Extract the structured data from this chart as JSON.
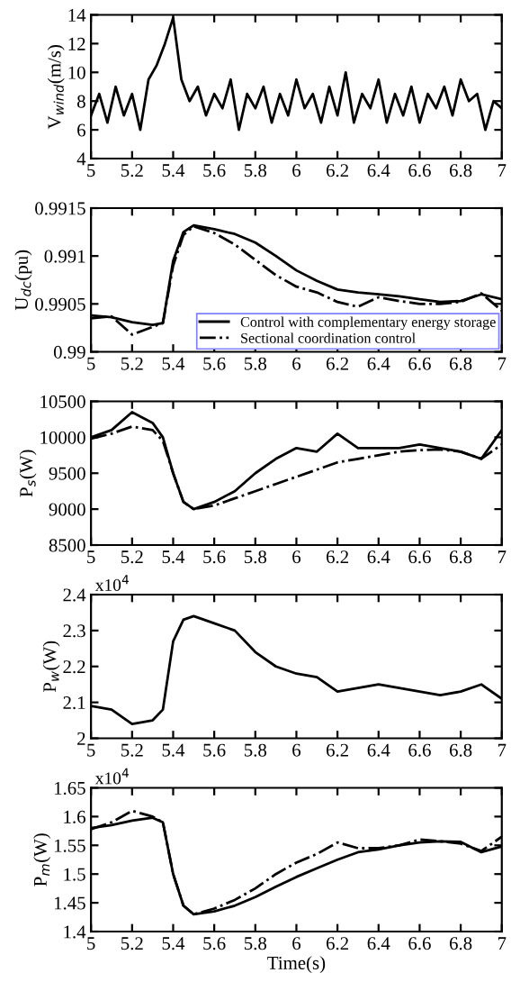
{
  "chart_data": [
    {
      "type": "line",
      "ylabel": "V$_{wind}$(m/s)",
      "xlim": [
        5,
        7
      ],
      "ylim": [
        4,
        14
      ],
      "xticks": [
        5,
        5.2,
        5.4,
        5.6,
        5.8,
        6,
        6.2,
        6.4,
        6.6,
        6.8,
        7
      ],
      "yticks": [
        4,
        6,
        8,
        10,
        12,
        14
      ],
      "x": [
        5.0,
        5.04,
        5.08,
        5.12,
        5.16,
        5.2,
        5.24,
        5.28,
        5.32,
        5.36,
        5.4,
        5.44,
        5.48,
        5.52,
        5.56,
        5.6,
        5.64,
        5.68,
        5.72,
        5.76,
        5.8,
        5.84,
        5.88,
        5.92,
        5.96,
        6.0,
        6.04,
        6.08,
        6.12,
        6.16,
        6.2,
        6.24,
        6.28,
        6.32,
        6.36,
        6.4,
        6.44,
        6.48,
        6.52,
        6.56,
        6.6,
        6.64,
        6.68,
        6.72,
        6.76,
        6.8,
        6.84,
        6.88,
        6.92,
        6.96,
        7.0
      ],
      "series": [
        {
          "color": "#000000",
          "line_style": "solid",
          "values": [
            7.0,
            8.5,
            6.5,
            9.0,
            7.0,
            8.5,
            6.0,
            9.5,
            10.5,
            12.0,
            13.8,
            9.5,
            8.0,
            9.0,
            7.0,
            8.5,
            7.5,
            9.5,
            6.0,
            8.5,
            7.5,
            9.0,
            6.5,
            8.5,
            7.0,
            9.5,
            7.5,
            8.5,
            6.5,
            9.0,
            7.0,
            10.0,
            6.5,
            8.5,
            7.5,
            9.5,
            6.5,
            8.5,
            7.0,
            9.0,
            6.5,
            8.5,
            7.5,
            9.0,
            7.0,
            9.5,
            8.0,
            8.5,
            6.0,
            8.0,
            7.5
          ]
        }
      ]
    },
    {
      "type": "line",
      "ylabel": "U$_{dc}$(pu)",
      "xlim": [
        5,
        7
      ],
      "ylim": [
        0.99,
        0.9915
      ],
      "xticks": [
        5,
        5.2,
        5.4,
        5.6,
        5.8,
        6,
        6.2,
        6.4,
        6.6,
        6.8,
        7
      ],
      "yticks": [
        0.99,
        0.9905,
        0.991,
        0.9915
      ],
      "legend": "bottom right",
      "x": [
        5.0,
        5.1,
        5.2,
        5.3,
        5.35,
        5.4,
        5.45,
        5.5,
        5.6,
        5.7,
        5.8,
        5.9,
        6.0,
        6.1,
        6.2,
        6.3,
        6.4,
        6.5,
        6.6,
        6.7,
        6.8,
        6.9,
        7.0
      ],
      "series": [
        {
          "name": "Control with complementary energy storage",
          "color": "#000000",
          "line_style": "solid",
          "values": [
            0.99038,
            0.99036,
            0.99031,
            0.99028,
            0.9903,
            0.99095,
            0.99125,
            0.99132,
            0.99128,
            0.99123,
            0.99114,
            0.991,
            0.99085,
            0.99074,
            0.99065,
            0.99062,
            0.9906,
            0.99058,
            0.99055,
            0.99052,
            0.99053,
            0.9906,
            0.99055
          ]
        },
        {
          "name": "Sectional coordination control",
          "color": "#000000",
          "line_style": "dashdot",
          "values": [
            0.99035,
            0.99037,
            0.99018,
            0.99026,
            0.9903,
            0.9909,
            0.99122,
            0.99131,
            0.99124,
            0.99112,
            0.99096,
            0.9908,
            0.99068,
            0.99062,
            0.99052,
            0.99047,
            0.99057,
            0.99053,
            0.9905,
            0.9905,
            0.99052,
            0.99061,
            0.99043
          ]
        }
      ]
    },
    {
      "type": "line",
      "ylabel": "P$_{s}$(W)",
      "xlim": [
        5,
        7
      ],
      "ylim": [
        8500,
        10500
      ],
      "xticks": [
        5,
        5.2,
        5.4,
        5.6,
        5.8,
        6,
        6.2,
        6.4,
        6.6,
        6.8,
        7
      ],
      "yticks": [
        8500,
        9000,
        9500,
        10000,
        10500
      ],
      "x": [
        5.0,
        5.1,
        5.2,
        5.3,
        5.35,
        5.4,
        5.45,
        5.5,
        5.6,
        5.7,
        5.8,
        5.9,
        6.0,
        6.1,
        6.2,
        6.3,
        6.4,
        6.5,
        6.6,
        6.7,
        6.8,
        6.9,
        7.0
      ],
      "series": [
        {
          "color": "#000000",
          "line_style": "solid",
          "values": [
            10000,
            10100,
            10350,
            10200,
            10000,
            9500,
            9100,
            9000,
            9100,
            9250,
            9500,
            9700,
            9850,
            9800,
            10050,
            9850,
            9850,
            9850,
            9900,
            9850,
            9800,
            9700,
            10100
          ]
        },
        {
          "color": "#000000",
          "line_style": "dashdot",
          "values": [
            9980,
            10050,
            10150,
            10100,
            9950,
            9500,
            9100,
            9000,
            9050,
            9150,
            9250,
            9350,
            9450,
            9550,
            9650,
            9700,
            9750,
            9800,
            9820,
            9830,
            9800,
            9700,
            9900
          ]
        }
      ]
    },
    {
      "type": "line",
      "ylabel": "P$_{w}$(W)",
      "annotations": [
        "x10$^{4}$"
      ],
      "xlim": [
        5,
        7
      ],
      "ylim": [
        2,
        2.4
      ],
      "xticks": [
        5,
        5.2,
        5.4,
        5.6,
        5.8,
        6,
        6.2,
        6.4,
        6.6,
        6.8,
        7
      ],
      "yticks": [
        2,
        2.1,
        2.2,
        2.3,
        2.4
      ],
      "x": [
        5.0,
        5.1,
        5.2,
        5.3,
        5.35,
        5.4,
        5.45,
        5.5,
        5.6,
        5.7,
        5.8,
        5.9,
        6.0,
        6.1,
        6.2,
        6.3,
        6.4,
        6.5,
        6.6,
        6.7,
        6.8,
        6.9,
        7.0
      ],
      "series": [
        {
          "color": "#000000",
          "line_style": "solid",
          "values": [
            2.09,
            2.08,
            2.04,
            2.05,
            2.08,
            2.27,
            2.33,
            2.34,
            2.32,
            2.3,
            2.24,
            2.2,
            2.18,
            2.17,
            2.13,
            2.14,
            2.15,
            2.14,
            2.13,
            2.12,
            2.13,
            2.15,
            2.11
          ]
        }
      ]
    },
    {
      "type": "line",
      "ylabel": "P$_{m}$(W)",
      "xlabel": "Time(s)",
      "annotations": [
        "x10$^{4}$"
      ],
      "xlim": [
        5,
        7
      ],
      "ylim": [
        1.4,
        1.65
      ],
      "xticks": [
        5,
        5.2,
        5.4,
        5.6,
        5.8,
        6,
        6.2,
        6.4,
        6.6,
        6.8,
        7
      ],
      "yticks": [
        1.4,
        1.45,
        1.5,
        1.55,
        1.6,
        1.65
      ],
      "x": [
        5.0,
        5.1,
        5.2,
        5.3,
        5.35,
        5.4,
        5.45,
        5.5,
        5.6,
        5.7,
        5.8,
        5.9,
        6.0,
        6.1,
        6.2,
        6.3,
        6.4,
        6.5,
        6.6,
        6.7,
        6.8,
        6.9,
        7.0
      ],
      "series": [
        {
          "color": "#000000",
          "line_style": "solid",
          "values": [
            1.58,
            1.585,
            1.593,
            1.598,
            1.59,
            1.5,
            1.445,
            1.43,
            1.435,
            1.445,
            1.46,
            1.478,
            1.495,
            1.51,
            1.525,
            1.538,
            1.543,
            1.55,
            1.555,
            1.557,
            1.556,
            1.538,
            1.548
          ]
        },
        {
          "color": "#000000",
          "line_style": "dashdot",
          "values": [
            1.578,
            1.59,
            1.61,
            1.6,
            1.59,
            1.5,
            1.445,
            1.43,
            1.44,
            1.455,
            1.475,
            1.5,
            1.52,
            1.535,
            1.555,
            1.545,
            1.545,
            1.55,
            1.56,
            1.557,
            1.553,
            1.54,
            1.565
          ]
        }
      ]
    }
  ]
}
